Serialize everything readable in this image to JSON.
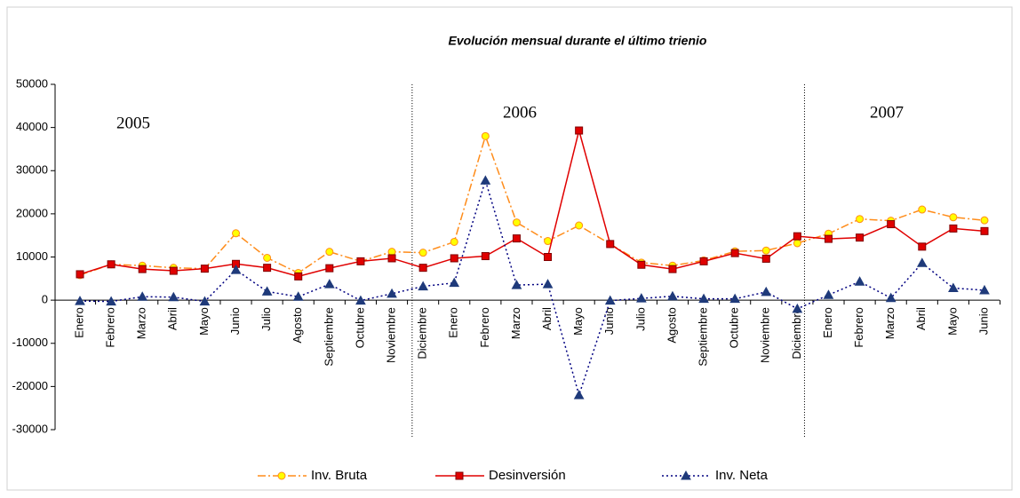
{
  "chart_data": {
    "type": "line",
    "title": "Evolución mensual durante el último trienio",
    "annotations": [
      "2005",
      "2006",
      "2007"
    ],
    "categories": [
      "Enero",
      "Febrero",
      "Marzo",
      "Abril",
      "Mayo",
      "Junio",
      "Julio",
      "Agosto",
      "Septiembre",
      "Octubre",
      "Noviembre",
      "Diciembre",
      "Enero",
      "Febrero",
      "Marzo",
      "Abril",
      "Mayo",
      "Junio",
      "Julio",
      "Agosto",
      "Septiembre",
      "Octubre",
      "Noviembre",
      "Diciembre",
      "Enero",
      "Febrero",
      "Marzo",
      "Abril",
      "Mayo",
      "Junio"
    ],
    "series": [
      {
        "name": "Inv. Bruta",
        "color": "#ff8c1a",
        "values": [
          5800,
          8300,
          8000,
          7500,
          7300,
          15500,
          9800,
          6300,
          11200,
          9000,
          11200,
          11000,
          13500,
          38000,
          18000,
          13700,
          17300,
          13000,
          8700,
          8000,
          9200,
          11300,
          11500,
          13200,
          15400,
          18800,
          18400,
          21000,
          19200,
          18500
        ]
      },
      {
        "name": "Desinversión",
        "color": "#e00000",
        "values": [
          6000,
          8300,
          7200,
          6800,
          7300,
          8400,
          7500,
          5500,
          7400,
          9000,
          9700,
          7500,
          9700,
          10200,
          14300,
          10000,
          39300,
          13000,
          8200,
          7200,
          9000,
          10900,
          9600,
          14800,
          14200,
          14500,
          17600,
          12400,
          16600,
          16000
        ]
      },
      {
        "name": "Inv. Neta",
        "color": "#000080",
        "values": [
          -200,
          -300,
          800,
          700,
          -300,
          7000,
          2000,
          800,
          3700,
          -100,
          1500,
          3200,
          4000,
          27700,
          3500,
          3700,
          -22000,
          -100,
          400,
          900,
          300,
          300,
          1900,
          -2000,
          1200,
          4300,
          500,
          8600,
          2800,
          2300
        ]
      }
    ],
    "ylim": [
      -30000,
      50000
    ],
    "yticks": [
      -30000,
      -20000,
      -10000,
      0,
      10000,
      20000,
      30000,
      40000,
      50000
    ],
    "grid": false
  }
}
